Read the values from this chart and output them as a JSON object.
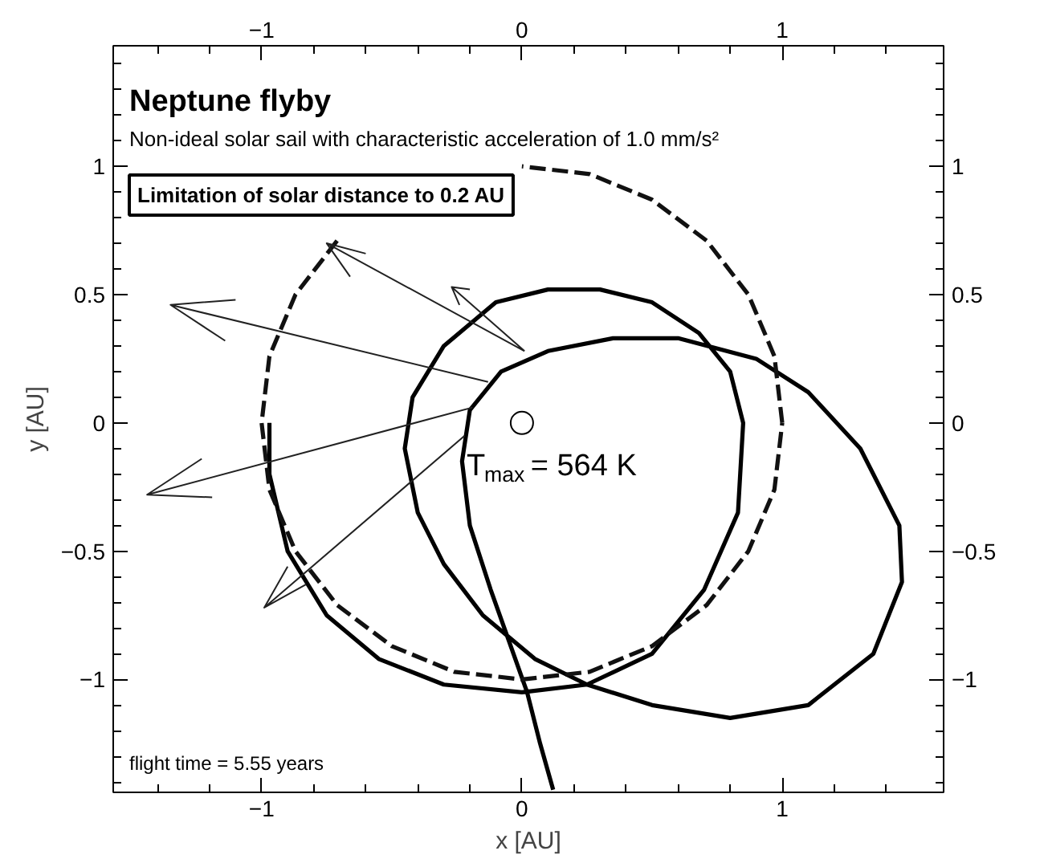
{
  "chart_data": {
    "type": "line",
    "title": "Neptune flyby",
    "subtitle": "Non-ideal solar sail with characteristic acceleration of 1.0 mm/s²",
    "xlabel": "x [AU]",
    "ylabel": "y [AU]",
    "x2label": null,
    "xlim": [
      -1.57,
      1.62
    ],
    "ylim": [
      -1.44,
      1.47
    ],
    "xticks": [
      {
        "value": -1.4,
        "label": null
      },
      {
        "value": -1.2,
        "label": null
      },
      -1,
      {
        "value": -0.8,
        "label": null
      },
      {
        "value": -0.6,
        "label": null
      },
      {
        "value": -0.4,
        "label": null
      },
      {
        "value": -0.2,
        "label": null
      },
      0,
      {
        "value": 0.2,
        "label": null
      },
      {
        "value": 0.4,
        "label": null
      },
      {
        "value": 0.6,
        "label": null
      },
      {
        "value": 0.8,
        "label": null
      },
      1,
      {
        "value": 1.2,
        "label": null
      },
      {
        "value": 1.4,
        "label": null
      }
    ],
    "x2lim": [
      -1.57,
      1.62
    ],
    "x2ticks": [
      {
        "value": -1.4,
        "label": null
      },
      {
        "value": -1.2,
        "label": null
      },
      -1,
      {
        "value": -0.8,
        "label": null
      },
      {
        "value": -0.6,
        "label": null
      },
      {
        "value": -0.4,
        "label": null
      },
      {
        "value": -0.2,
        "label": null
      },
      0,
      {
        "value": 0.2,
        "label": null
      },
      {
        "value": 0.4,
        "label": null
      },
      {
        "value": 0.6,
        "label": null
      },
      {
        "value": 0.8,
        "label": null
      },
      1,
      {
        "value": 1.2,
        "label": null
      },
      {
        "value": 1.4,
        "label": null
      }
    ],
    "yticks": [
      {
        "value": -1.4,
        "label": null
      },
      {
        "value": -1.3,
        "label": null
      },
      {
        "value": -1.2,
        "label": null
      },
      {
        "value": -1.1,
        "label": null
      },
      -1,
      {
        "value": -0.9,
        "label": null
      },
      {
        "value": -0.8,
        "label": null
      },
      {
        "value": -0.7,
        "label": null
      },
      {
        "value": -0.6,
        "label": null
      },
      -0.5,
      {
        "value": -0.4,
        "label": null
      },
      {
        "value": -0.3,
        "label": null
      },
      {
        "value": -0.2,
        "label": null
      },
      {
        "value": -0.1,
        "label": null
      },
      0,
      {
        "value": 0.1,
        "label": null
      },
      {
        "value": 0.2,
        "label": null
      },
      {
        "value": 0.3,
        "label": null
      },
      {
        "value": 0.4,
        "label": null
      },
      0.5,
      {
        "value": 0.6,
        "label": null
      },
      {
        "value": 0.7,
        "label": null
      },
      {
        "value": 0.8,
        "label": null
      },
      {
        "value": 0.9,
        "label": null
      },
      1,
      {
        "value": 1.1,
        "label": null
      },
      {
        "value": 1.2,
        "label": null
      },
      {
        "value": 1.3,
        "label": null
      },
      {
        "value": 1.4,
        "label": null
      }
    ],
    "y2lim": [
      -1.44,
      1.47
    ],
    "y2ticks": [
      {
        "value": -1.4,
        "label": null
      },
      {
        "value": -1.3,
        "label": null
      },
      {
        "value": -1.2,
        "label": null
      },
      {
        "value": -1.1,
        "label": null
      },
      -1,
      {
        "value": -0.9,
        "label": null
      },
      {
        "value": -0.8,
        "label": null
      },
      {
        "value": -0.7,
        "label": null
      },
      {
        "value": -0.6,
        "label": null
      },
      -0.5,
      {
        "value": -0.4,
        "label": null
      },
      {
        "value": -0.3,
        "label": null
      },
      {
        "value": -0.2,
        "label": null
      },
      {
        "value": -0.1,
        "label": null
      },
      0,
      {
        "value": 0.1,
        "label": null
      },
      {
        "value": 0.2,
        "label": null
      },
      {
        "value": 0.3,
        "label": null
      },
      {
        "value": 0.4,
        "label": null
      },
      0.5,
      {
        "value": 0.6,
        "label": null
      },
      {
        "value": 0.7,
        "label": null
      },
      {
        "value": 0.8,
        "label": null
      },
      {
        "value": 0.9,
        "label": null
      },
      1,
      {
        "value": 1.1,
        "label": null
      },
      {
        "value": 1.2,
        "label": null
      },
      {
        "value": 1.3,
        "label": null
      },
      {
        "value": 1.4,
        "label": null
      }
    ],
    "grid": false,
    "series": [
      {
        "color": "#000000",
        "line_style": "solid",
        "x": [
          -0.97,
          -0.97,
          -0.9,
          -0.75,
          -0.55,
          -0.3,
          0,
          0.25,
          0.5,
          0.7,
          0.83,
          0.85,
          0.8,
          0.68,
          0.5,
          0.3,
          0.1,
          -0.1,
          -0.3,
          -0.42,
          -0.45,
          -0.4,
          -0.3,
          -0.15,
          0.05,
          0.25,
          0.5,
          0.8,
          1.1,
          1.35,
          1.46,
          1.45,
          1.3,
          1.1,
          0.9,
          0.6,
          0.35,
          0.1,
          -0.08,
          -0.2,
          -0.23,
          -0.2,
          -0.12,
          -0.05,
          0.02,
          0.07,
          0.12
        ],
        "values": [
          0.0,
          -0.2,
          -0.5,
          -0.75,
          -0.92,
          -1.02,
          -1.05,
          -1.02,
          -0.9,
          -0.65,
          -0.35,
          0,
          0.2,
          0.35,
          0.47,
          0.52,
          0.52,
          0.47,
          0.3,
          0.1,
          -0.1,
          -0.35,
          -0.55,
          -0.75,
          -0.92,
          -1.02,
          -1.1,
          -1.15,
          -1.1,
          -0.9,
          -0.62,
          -0.4,
          -0.1,
          0.12,
          0.25,
          0.33,
          0.33,
          0.28,
          0.2,
          0.05,
          -0.15,
          -0.4,
          -0.65,
          -0.85,
          -1.05,
          -1.25,
          -1.43
        ]
      },
      {
        "color": "#111111",
        "line_style": "dashed",
        "x": [
          1,
          0.97,
          0.87,
          0.71,
          0.5,
          0.26,
          0,
          null,
          null,
          -0.71,
          -0.87,
          -0.97,
          -1,
          -0.97,
          -0.87,
          -0.71,
          -0.5,
          -0.26,
          0,
          0.26,
          0.5,
          0.71,
          0.87,
          0.97,
          1
        ],
        "values": [
          0,
          0.26,
          0.5,
          0.71,
          0.87,
          0.97,
          1,
          null,
          null,
          0.71,
          0.5,
          0.26,
          0,
          -0.26,
          -0.5,
          -0.71,
          -0.87,
          -0.97,
          -1,
          -0.97,
          -0.87,
          -0.71,
          -0.5,
          -0.26,
          0
        ]
      },
      {
        "color": "#222222",
        "line_style": "solid",
        "x": [
          0.01,
          -0.75,
          null,
          -0.6,
          -0.75,
          -0.66,
          null,
          -0.13,
          -1.35,
          null,
          -1.1,
          -1.35,
          -1.14,
          null,
          -0.19,
          -1.44,
          null,
          -1.23,
          -1.44,
          -1.19,
          null,
          -0.22,
          -0.99,
          null,
          -0.9,
          -0.99,
          -0.83,
          null,
          0.01,
          -0.27,
          null,
          -0.2,
          -0.27,
          -0.24
        ],
        "values": [
          0.28,
          0.7,
          null,
          0.66,
          0.7,
          0.57,
          null,
          0.16,
          0.46,
          null,
          0.48,
          0.46,
          0.32,
          null,
          0.06,
          -0.28,
          null,
          -0.14,
          -0.28,
          -0.29,
          null,
          -0.05,
          -0.72,
          null,
          -0.56,
          -0.72,
          -0.63,
          null,
          0.28,
          0.53,
          null,
          0.52,
          0.53,
          0.46
        ]
      },
      {
        "type": "scatter",
        "marker": "circle",
        "color": "#000000",
        "x": [
          0
        ],
        "values": [
          0
        ]
      }
    ],
    "annotations": [
      "Limitation of solar distance to 0.2 AU",
      "T$_{max}$ = 564 K",
      "flight time = 5.55 years"
    ]
  }
}
